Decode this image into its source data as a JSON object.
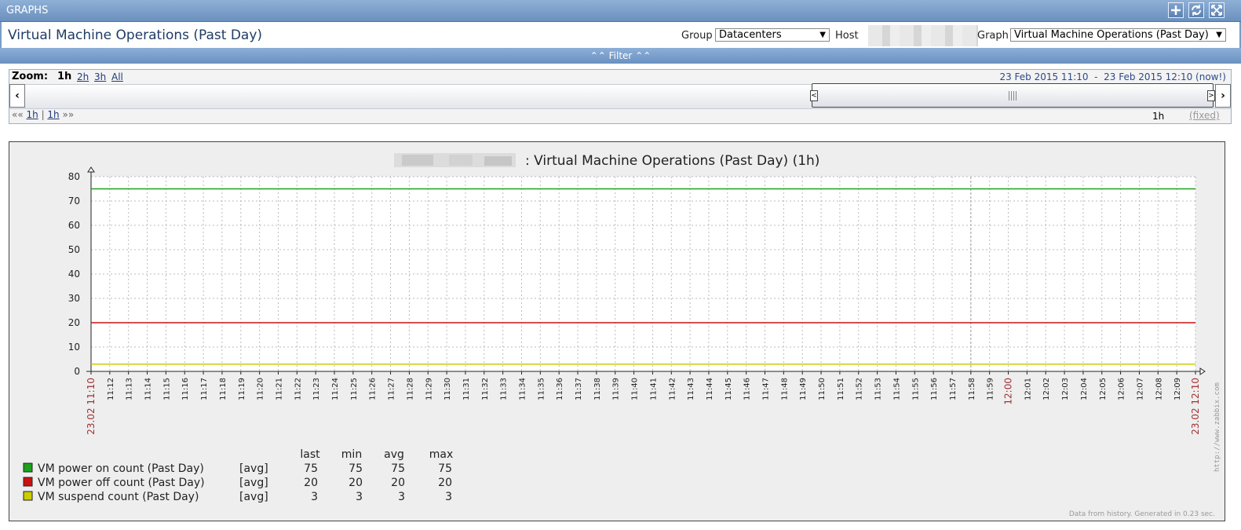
{
  "header": {
    "title": "GRAPHS",
    "buttons": [
      {
        "name": "add-to-favorites",
        "icon": "plus-icon"
      },
      {
        "name": "refresh",
        "icon": "refresh-icon"
      },
      {
        "name": "fullscreen",
        "icon": "fullscreen-icon"
      }
    ]
  },
  "titlebar": {
    "title": "Virtual Machine Operations (Past Day)",
    "group_label": "Group",
    "group_value": "Datacenters",
    "host_label": "Host",
    "graph_label": "Graph",
    "graph_value": "Virtual Machine Operations (Past Day)"
  },
  "filter": {
    "label": "Filter"
  },
  "zoom": {
    "label": "Zoom:",
    "active": "1h",
    "options": [
      "2h",
      "3h",
      "All"
    ],
    "period_start": "23 Feb 2015 11:10",
    "period_sep": "-",
    "period_end": "23 Feb 2015 12:10 (now!)",
    "nav_back": "«« ",
    "nav_back_step": "1h",
    "nav_sep": " | ",
    "nav_fwd_step": "1h",
    "nav_fwd": " »»",
    "period_length": "1h",
    "fixed_label": "(fixed)"
  },
  "graph": {
    "title": ": Virtual Machine Operations (Past Day) (1h)",
    "watermark": "http://www.zabbix.com",
    "footer": "Data from history. Generated in 0.23 sec.",
    "colors": {
      "power_on": "#1aa31a",
      "power_off": "#cc1111",
      "suspend": "#cccc00"
    },
    "legend": {
      "headers": [
        "last",
        "min",
        "avg",
        "max"
      ],
      "items": [
        {
          "name": "VM power on count (Past Day)",
          "func": "[avg]",
          "last": "75",
          "min": "75",
          "avg": "75",
          "max": "75",
          "color": "#1aa31a"
        },
        {
          "name": "VM power off count (Past Day)",
          "func": "[avg]",
          "last": "20",
          "min": "20",
          "avg": "20",
          "max": "20",
          "color": "#cc1111"
        },
        {
          "name": "VM suspend count (Past Day)",
          "func": "[avg]",
          "last": "3",
          "min": "3",
          "avg": "3",
          "max": "3",
          "color": "#cccc00"
        }
      ]
    }
  },
  "chart_data": {
    "type": "line",
    "title": ": Virtual Machine Operations (Past Day) (1h)",
    "xlabel": "",
    "ylabel": "",
    "ylim": [
      0,
      80
    ],
    "yticks": [
      "0",
      "10",
      "20",
      "30",
      "40",
      "50",
      "60",
      "70",
      "80"
    ],
    "x_start_label": "23.02 11:10",
    "x_end_label": "23.02 12:10",
    "x_labels": [
      "11:12",
      "11:13",
      "11:14",
      "11:15",
      "11:16",
      "11:17",
      "11:18",
      "11:19",
      "11:20",
      "11:21",
      "11:22",
      "11:23",
      "11:24",
      "11:25",
      "11:26",
      "11:27",
      "11:28",
      "11:29",
      "11:30",
      "11:31",
      "11:32",
      "11:33",
      "11:34",
      "11:35",
      "11:36",
      "11:37",
      "11:38",
      "11:39",
      "11:40",
      "11:41",
      "11:42",
      "11:43",
      "11:44",
      "11:45",
      "11:46",
      "11:47",
      "11:48",
      "11:49",
      "11:50",
      "11:51",
      "11:52",
      "11:53",
      "11:54",
      "11:55",
      "11:56",
      "11:57",
      "11:58",
      "11:59",
      "12:00",
      "12:01",
      "12:02",
      "12:03",
      "12:04",
      "12:05",
      "12:06",
      "12:07",
      "12:08",
      "12:09"
    ],
    "grid": true,
    "series": [
      {
        "name": "VM power on count (Past Day)",
        "values": [
          75,
          75
        ],
        "color": "#1aa31a"
      },
      {
        "name": "VM power off count (Past Day)",
        "values": [
          20,
          20
        ],
        "color": "#cc1111"
      },
      {
        "name": "VM suspend count (Past Day)",
        "values": [
          3,
          3
        ],
        "color": "#cccc00"
      }
    ]
  }
}
